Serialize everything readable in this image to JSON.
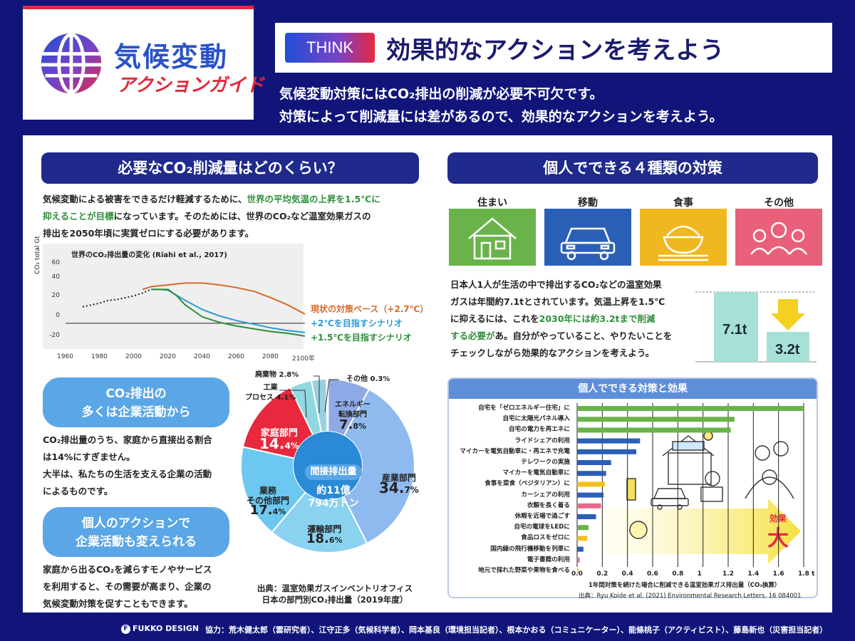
{
  "logo": {
    "title": "気候変動",
    "subtitle": "アクションガイド"
  },
  "header": {
    "tag": "THINK",
    "title": "効果的なアクションを考えよう"
  },
  "intro": [
    "気候変動対策にはCO₂排出の削減が必要不可欠です。",
    "対策によって削減量には差があるので、効果的なアクションを考えよう。"
  ],
  "left": {
    "title": "必要なCO₂削減量はどのくらい？",
    "para": {
      "l1a": "気候変動による被害をできるだけ軽減するために、",
      "l1b": "世界の平均気温の上昇を1.5℃に",
      "l2a": "抑えることが目標",
      "l2b": "になっています。そのためには、世界のCO₂など温室効果ガスの",
      "l3": "排出を2050年頃に実質ゼロにする必要があります。"
    },
    "pill1": [
      "CO₂排出の",
      "多くは企業活動から"
    ],
    "para2": [
      "CO₂排出量のうち、家庭から直接出る割合",
      "は14%にすぎません。",
      "大半は、私たちの生活を支える企業の活動",
      "によるものです。"
    ],
    "pill2": [
      "個人のアクションで",
      "企業活動も変えられる"
    ],
    "para3": [
      "家庭から出るCO₂を減らすモノやサービス",
      "を利用すると、その需要が高まり、企業の",
      "気候変動対策を促すこともできます。"
    ]
  },
  "chart_data": [
    {
      "type": "line",
      "title": "世界のCO₂排出量の変化 (Riahi et al., 2017)",
      "ylabel": "CO₂ total Gt",
      "xlabel": "",
      "x_ticks": [
        "1960",
        "1980",
        "2000",
        "2020",
        "2040",
        "2060",
        "2080",
        "2100年"
      ],
      "y_ticks": [
        "60",
        "40",
        "20",
        "0",
        "-20"
      ],
      "xlim": [
        1960,
        2100
      ],
      "ylim": [
        -25,
        70
      ],
      "series": [
        {
          "name": "historical",
          "style": "dotted",
          "color": "#222222",
          "x": [
            1970,
            1975,
            1980,
            1985,
            1990,
            1995,
            2000,
            2005,
            2010
          ],
          "y": [
            18,
            20,
            22,
            25,
            26,
            28,
            30,
            33,
            37
          ]
        },
        {
          "name": "現状の対策ベース（+2.7℃）",
          "color": "#d86a2a",
          "x": [
            2005,
            2010,
            2020,
            2030,
            2040,
            2050,
            2060,
            2070,
            2080,
            2090,
            2100
          ],
          "y": [
            37,
            40,
            42,
            44,
            44,
            42,
            39,
            35,
            28,
            20,
            10
          ]
        },
        {
          "name": "+2℃を目指すシナリオ",
          "color": "#2c9ad6",
          "x": [
            2010,
            2015,
            2020,
            2030,
            2040,
            2050,
            2060,
            2070,
            2080,
            2090,
            2100
          ],
          "y": [
            37,
            37,
            36,
            25,
            15,
            8,
            3,
            -1,
            -5,
            -8,
            -10
          ]
        },
        {
          "name": "+1.5℃を目指すシナリオ",
          "color": "#2e8f3a",
          "x": [
            2010,
            2015,
            2020,
            2025,
            2030,
            2040,
            2050,
            2060,
            2070,
            2080,
            2090,
            2100
          ],
          "y": [
            37,
            37,
            37,
            30,
            20,
            7,
            1,
            -3,
            -6,
            -9,
            -11,
            -14
          ]
        }
      ]
    },
    {
      "type": "pie",
      "title": "日本の部門別CO₂排出量（2019年度）",
      "source": "出典：温室効果ガスインベントリオフィス",
      "center_label": "間接排出量",
      "center_value": [
        "約11億",
        "794万トン"
      ],
      "slices": [
        {
          "name": "エネルギー転換部門",
          "label": [
            "エネルギー",
            "転換部門"
          ],
          "value": 7.8,
          "color": "#8fa8e6"
        },
        {
          "name": "産業部門",
          "label": [
            "産業部門"
          ],
          "value": 34.7,
          "color": "#8fbaf0"
        },
        {
          "name": "運輸部門",
          "label": [
            "運輸部門"
          ],
          "value": 18.6,
          "color": "#8ad2f0"
        },
        {
          "name": "業務その他部門",
          "label": [
            "業務",
            "その他部門"
          ],
          "value": 17.4,
          "color": "#6cc8f0"
        },
        {
          "name": "家庭部門",
          "label": [
            "家庭部門"
          ],
          "value": 14.4,
          "color": "#e8283c"
        },
        {
          "name": "工業プロセス",
          "label": [
            "工業",
            "プロセス 4.1%"
          ],
          "value": 4.1,
          "color": "#8fd8e0"
        },
        {
          "name": "廃棄物",
          "label": [
            "廃棄物 2.8%"
          ],
          "value": 2.8,
          "color": "#9acfe0"
        },
        {
          "name": "その他",
          "label": [
            "その他 0.3%"
          ],
          "value": 0.3,
          "color": "#cccccc"
        }
      ],
      "pct_inside": {
        "エネルギー転換部門": [
          "7.",
          "8%"
        ],
        "産業部門": [
          "34.",
          "7%"
        ],
        "運輸部門": [
          "18.",
          "6%"
        ],
        "業務その他部門": [
          "17.",
          "4%"
        ],
        "家庭部門": [
          "14.",
          "4%"
        ]
      }
    },
    {
      "type": "bar",
      "orientation": "horizontal",
      "title": "個人でできる対策と効果",
      "xlabel": "1年間対策を続けた場合に削減できる温室効果ガス排出量（CO₂換算）",
      "source": "出典：Ryu Koide et al. (2021) Environmental Research Letters. 16 084001",
      "x_ticks": [
        "0.0",
        "0.2",
        "0.4",
        "0.6",
        "0.8",
        "1",
        "1.2",
        "1.4",
        "1.6",
        "1.8 t"
      ],
      "xlim": [
        0,
        1.8
      ],
      "categories": [
        "自宅を「ゼロエネルギー住宅」に",
        "自宅に太陽光パネル導入",
        "自宅の電力を再エネに",
        "ライドシェアの利用",
        "マイカーを電気自動車に・再エネで充電",
        "テレワークの実施",
        "マイカーを電気自動車に",
        "食事を菜食（ベジタリアン）に",
        "カーシェアの利用",
        "衣類を長く着る",
        "休暇を近場で過ごす",
        "自宅の電球をLEDに",
        "食品ロスをゼロに",
        "国内線の飛行機移動を列車に",
        "電子書籍の利用",
        "地元で採れた野菜や果物を食べる"
      ],
      "values": [
        1.8,
        1.25,
        1.22,
        0.5,
        0.47,
        0.27,
        0.23,
        0.22,
        0.21,
        0.19,
        0.15,
        0.09,
        0.08,
        0.05,
        0.02,
        0.01
      ],
      "colors": [
        "#6ab34a",
        "#6ab34a",
        "#6ab34a",
        "#2a5fb8",
        "#2a5fb8",
        "#2a5fb8",
        "#2a5fb8",
        "#f0c020",
        "#2a5fb8",
        "#e86a8a",
        "#2a5fb8",
        "#6ab34a",
        "#f0c020",
        "#2a5fb8",
        "#e86a8a",
        "#f0c020"
      ],
      "annotation": [
        "効果",
        "大"
      ]
    }
  ],
  "right": {
    "title": "個人でできる４種類の対策",
    "categories": [
      {
        "label": "住まい",
        "icon": "house-icon",
        "color": "#6ab34a"
      },
      {
        "label": "移動",
        "icon": "car-icon",
        "color": "#2a5fb8"
      },
      {
        "label": "食事",
        "icon": "rice-bowl-icon",
        "color": "#f0b820"
      },
      {
        "label": "その他",
        "icon": "people-icon",
        "color": "#e8607a"
      }
    ],
    "para": {
      "l1": "日本人1人が生活の中で排出するCO₂などの温室効果",
      "l2": "ガスは年間約7.1tとされています。気温上昇を1.5℃",
      "l3a": "に抑えるには、これを",
      "l3b": "2030年には約3.2tまで削減",
      "l4a": "する必要が",
      "l4b": "あ。自分がやっていること、やりたいことを",
      "l5": "チェックしながら効果的なアクションを考えよう。"
    },
    "bar_from": "7.1t",
    "bar_to": "3.2t"
  },
  "footer": {
    "brand": "FUKKO DESIGN",
    "credits": "協力：荒木健太郎（雲研究者）、江守正多（気候科学者）、岡本基良（環境担当記者）、根本かおる（コミュニケーター）、能條桃子（アクティビスト）、藤島新也（災害担当記者）"
  },
  "colors": {
    "navy": "#11157a",
    "section": "#1f2a8c",
    "pill": "#5aa6e6",
    "red": "#e8283c",
    "green": "#2f8f3a"
  }
}
